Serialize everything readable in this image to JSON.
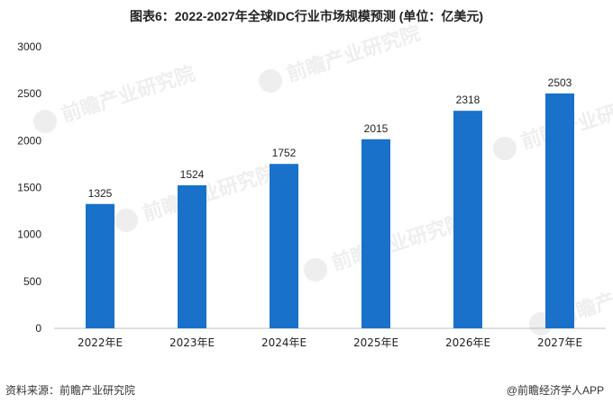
{
  "chart_data": {
    "type": "bar",
    "title": "图表6：2022-2027年全球IDC行业市场规模预测 (单位：亿美元)",
    "categories": [
      "2022年E",
      "2023年E",
      "2024年E",
      "2025年E",
      "2026年E",
      "2027年E"
    ],
    "values": [
      1325,
      1524,
      1752,
      2015,
      2318,
      2503
    ],
    "ylim": [
      0,
      3000
    ],
    "yticks": [
      0,
      500,
      1000,
      1500,
      2000,
      2500,
      3000
    ],
    "xlabel": "",
    "ylabel": "",
    "grid": false,
    "bar_color": "#1971C9"
  },
  "footer": {
    "source": "资料来源：前瞻产业研究院",
    "brand": "@前瞻经济学人APP"
  },
  "watermark": {
    "text": "前瞻产业研究院"
  }
}
